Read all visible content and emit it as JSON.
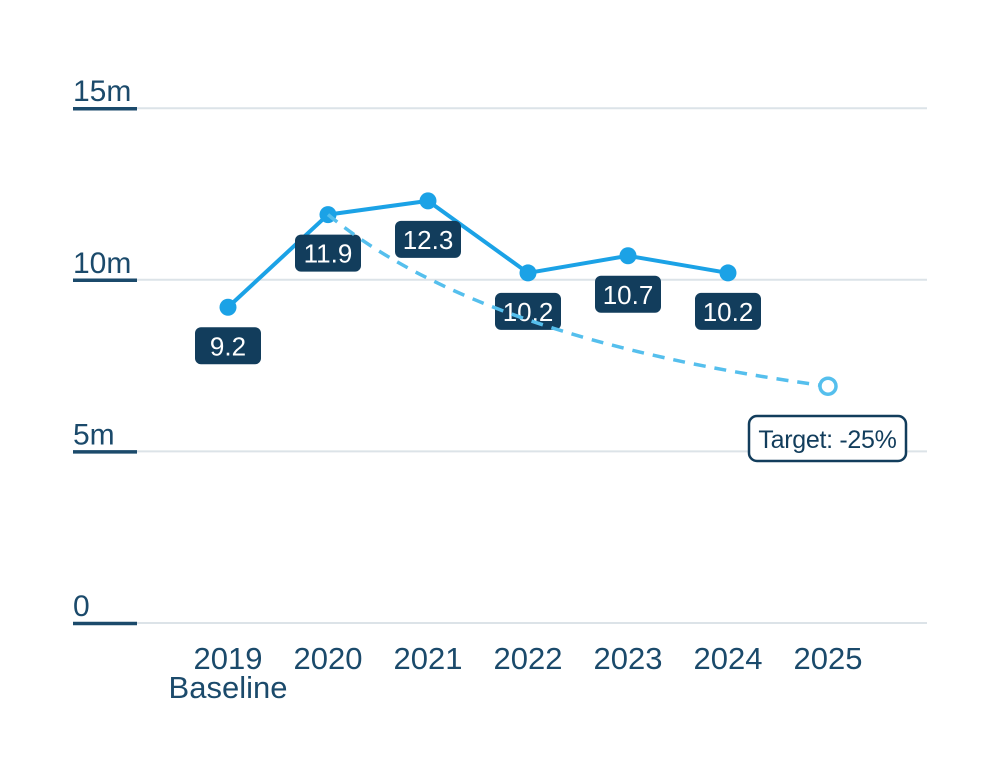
{
  "chart_data": {
    "type": "line",
    "categories": [
      "2019",
      "2020",
      "2021",
      "2022",
      "2023",
      "2024",
      "2025"
    ],
    "baseline_note": {
      "category_index": 0,
      "label": "Baseline"
    },
    "y_axis": {
      "ticks": [
        {
          "label": "15m",
          "value": 15
        },
        {
          "label": "10m",
          "value": 10
        },
        {
          "label": "5m",
          "value": 5
        },
        {
          "label": "0",
          "value": 0
        }
      ],
      "ylim": [
        0,
        17.5
      ]
    },
    "series": [
      {
        "name": "actual",
        "style": "solid",
        "color": "#1ba2e6",
        "points": [
          {
            "category": "2019",
            "value": 9.2,
            "label": "9.2"
          },
          {
            "category": "2020",
            "value": 11.9,
            "label": "11.9"
          },
          {
            "category": "2021",
            "value": 12.3,
            "label": "12.3"
          },
          {
            "category": "2022",
            "value": 10.2,
            "label": "10.2"
          },
          {
            "category": "2023",
            "value": 10.7,
            "label": "10.7"
          },
          {
            "category": "2024",
            "value": 10.2,
            "label": "10.2"
          }
        ]
      },
      {
        "name": "target-trajectory",
        "style": "dashed",
        "color": "#55bfed",
        "end_marker": "open-circle",
        "points": [
          {
            "category": "2020",
            "value": 11.9
          },
          {
            "category": "2025",
            "value": 6.9
          }
        ]
      }
    ],
    "annotation": {
      "label": "Target: -25%"
    },
    "colors": {
      "badge_bg": "#123d5c",
      "badge_text": "#ffffff",
      "axis_text": "#1b4a6b",
      "gridline": "#dce3e8",
      "tick": "#1b4a6b"
    },
    "layout_hints": {
      "grid": "horizontal-only",
      "legend": "none",
      "labels": "value-badges-below-points"
    }
  }
}
